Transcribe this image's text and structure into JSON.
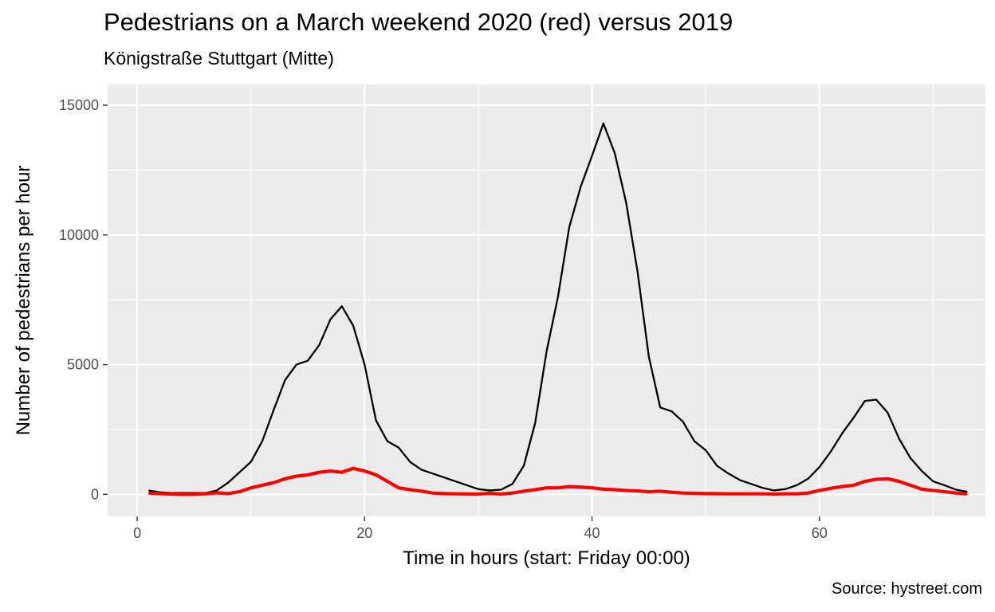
{
  "chart_data": {
    "type": "line",
    "title": "Pedestrians on a March weekend 2020 (red) versus 2019",
    "subtitle": "Königstraße Stuttgart (Mitte)",
    "caption": "Source: hystreet.com",
    "xlabel": "Time in hours (start: Friday 00:00)",
    "ylabel": "Number of pedestrians per hour",
    "xlim": [
      -2.6,
      74.6
    ],
    "ylim": [
      -850,
      15800
    ],
    "x_ticks": [
      0,
      20,
      40,
      60
    ],
    "y_ticks": [
      0,
      5000,
      10000,
      15000
    ],
    "grid": true,
    "legend": "none",
    "colors": {
      "panel_background": "#ebebeb",
      "grid_major": "#ffffff",
      "series_2019": "#000000",
      "series_2020": "#ff0000"
    },
    "series": [
      {
        "color": "#000000",
        "x": [
          1,
          2,
          3,
          4,
          5,
          6,
          7,
          8,
          9,
          10,
          11,
          12,
          13,
          14,
          15,
          16,
          17,
          18,
          19,
          20,
          21,
          22,
          23,
          24,
          25,
          26,
          27,
          28,
          29,
          30,
          31,
          32,
          33,
          34,
          35,
          36,
          37,
          38,
          39,
          40,
          41,
          42,
          43,
          44,
          45,
          46,
          47,
          48,
          49,
          50,
          51,
          52,
          53,
          54,
          55,
          56,
          57,
          58,
          59,
          60,
          61,
          62,
          63,
          64,
          65,
          66,
          67,
          68,
          69,
          70,
          71,
          72,
          73
        ],
        "y": [
          150,
          80,
          50,
          50,
          50,
          50,
          150,
          450,
          850,
          1250,
          2050,
          3250,
          4400,
          5000,
          5150,
          5750,
          6750,
          7250,
          6500,
          5000,
          2850,
          2050,
          1800,
          1250,
          950,
          800,
          650,
          500,
          350,
          200,
          150,
          180,
          400,
          1100,
          2750,
          5500,
          7600,
          10300,
          11850,
          13050,
          14300,
          13150,
          11250,
          8600,
          5300,
          3350,
          3200,
          2800,
          2050,
          1700,
          1100,
          800,
          550,
          400,
          250,
          150,
          200,
          350,
          600,
          1050,
          1650,
          2350,
          2950,
          3600,
          3650,
          3150,
          2150,
          1400,
          900,
          500,
          350,
          180,
          100
        ]
      },
      {
        "color": "#ff0000",
        "x": [
          1,
          2,
          3,
          4,
          5,
          6,
          7,
          8,
          9,
          10,
          11,
          12,
          13,
          14,
          15,
          16,
          17,
          18,
          19,
          20,
          21,
          22,
          23,
          24,
          25,
          26,
          27,
          28,
          29,
          30,
          31,
          32,
          33,
          34,
          35,
          36,
          37,
          38,
          39,
          40,
          41,
          42,
          43,
          44,
          45,
          46,
          47,
          48,
          49,
          50,
          51,
          52,
          53,
          54,
          55,
          56,
          57,
          58,
          59,
          60,
          61,
          62,
          63,
          64,
          65,
          66,
          67,
          68,
          69,
          70,
          71,
          72,
          73
        ],
        "y": [
          50,
          30,
          10,
          0,
          0,
          20,
          60,
          30,
          100,
          250,
          350,
          450,
          600,
          700,
          750,
          850,
          900,
          850,
          1000,
          900,
          750,
          500,
          250,
          180,
          120,
          50,
          30,
          20,
          15,
          10,
          40,
          10,
          50,
          120,
          180,
          250,
          250,
          300,
          280,
          250,
          200,
          180,
          150,
          130,
          100,
          120,
          80,
          50,
          40,
          30,
          25,
          20,
          20,
          20,
          20,
          10,
          20,
          20,
          50,
          150,
          230,
          300,
          350,
          500,
          580,
          600,
          500,
          350,
          200,
          150,
          100,
          50,
          20
        ]
      }
    ]
  }
}
